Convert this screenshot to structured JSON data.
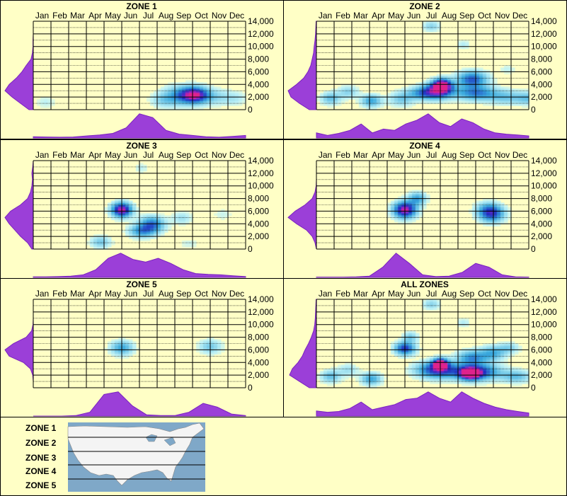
{
  "colors": {
    "background": "#FFFFC6",
    "density_fill": "#9B3FD8",
    "density_stroke": "#7A22C0",
    "heat_low": "#BFF2F6",
    "heat_mid": "#38A8DC",
    "heat_high": "#1E2EC0",
    "heat_peak": "#E0208C",
    "map_water": "#7FA8C8",
    "map_land": "#F4F4F4"
  },
  "legend": {
    "zones": [
      "ZONE 1",
      "ZONE 2",
      "ZONE 3",
      "ZONE 4",
      "ZONE 5"
    ]
  },
  "chart_data": [
    {
      "type": "heatmap",
      "title": "ZONE 1",
      "x_categories": [
        "Jan",
        "Feb",
        "Mar",
        "Apr",
        "May",
        "Jun",
        "Jul",
        "Aug",
        "Sep",
        "Oct",
        "Nov",
        "Dec"
      ],
      "y_ticks": [
        "14,000",
        "12,000",
        "10,000",
        "8,000",
        "6,000",
        "4,000",
        "2,000",
        "0"
      ],
      "ylim": [
        0,
        14000
      ],
      "hotspots": [
        {
          "month": 8.6,
          "elev": 2300,
          "intensity": 1.0,
          "sx": 0.55,
          "sy": 900
        },
        {
          "month": 7.6,
          "elev": 2200,
          "intensity": 0.35,
          "sx": 0.6,
          "sy": 1100
        },
        {
          "month": 6.8,
          "elev": 1500,
          "intensity": 0.2,
          "sx": 0.5,
          "sy": 800
        },
        {
          "month": 9.8,
          "elev": 2000,
          "intensity": 0.2,
          "sx": 0.6,
          "sy": 900
        },
        {
          "month": 10.9,
          "elev": 1800,
          "intensity": 0.15,
          "sx": 0.5,
          "sy": 800
        },
        {
          "month": 0.2,
          "elev": 1200,
          "intensity": 0.12,
          "sx": 0.4,
          "sy": 700
        }
      ],
      "month_density": [
        0.05,
        0.04,
        0.03,
        0.04,
        0.08,
        0.12,
        0.18,
        0.4,
        0.95,
        0.8,
        0.3,
        0.15,
        0.1,
        0.05,
        0.03,
        0.06,
        0.1
      ],
      "elev_density": [
        0.15,
        0.45,
        0.75,
        1.0,
        0.85,
        0.6,
        0.4,
        0.25,
        0.08,
        0.03,
        0.01,
        0.01,
        0.0,
        0.0,
        0.0
      ]
    },
    {
      "type": "heatmap",
      "title": "ZONE 2",
      "x_categories": [
        "Jan",
        "Feb",
        "Mar",
        "Apr",
        "May",
        "Jun",
        "Jul",
        "Aug",
        "Sep",
        "Oct",
        "Nov",
        "Dec"
      ],
      "y_ticks": [
        "14,000",
        "12,000",
        "10,000",
        "8,000",
        "6,000",
        "4,000",
        "2,000",
        "0"
      ],
      "ylim": [
        0,
        14000
      ],
      "hotspots": [
        {
          "month": 6.6,
          "elev": 3900,
          "intensity": 1.0,
          "sx": 0.35,
          "sy": 700
        },
        {
          "month": 6.4,
          "elev": 3000,
          "intensity": 0.75,
          "sx": 0.6,
          "sy": 900
        },
        {
          "month": 8.3,
          "elev": 4800,
          "intensity": 0.65,
          "sx": 0.6,
          "sy": 900
        },
        {
          "month": 8.5,
          "elev": 2600,
          "intensity": 0.55,
          "sx": 0.8,
          "sy": 800
        },
        {
          "month": 5.5,
          "elev": 2600,
          "intensity": 0.45,
          "sx": 0.6,
          "sy": 700
        },
        {
          "month": 2.6,
          "elev": 1400,
          "intensity": 0.45,
          "sx": 0.4,
          "sy": 700
        },
        {
          "month": 0.3,
          "elev": 1800,
          "intensity": 0.35,
          "sx": 0.4,
          "sy": 700
        },
        {
          "month": 1.3,
          "elev": 2800,
          "intensity": 0.25,
          "sx": 0.4,
          "sy": 700
        },
        {
          "month": 4.3,
          "elev": 1700,
          "intensity": 0.3,
          "sx": 0.5,
          "sy": 800
        },
        {
          "month": 10.2,
          "elev": 2000,
          "intensity": 0.3,
          "sx": 0.7,
          "sy": 800
        },
        {
          "month": 11.5,
          "elev": 1800,
          "intensity": 0.3,
          "sx": 0.5,
          "sy": 700
        },
        {
          "month": 6.0,
          "elev": 13200,
          "intensity": 0.25,
          "sx": 0.35,
          "sy": 600
        },
        {
          "month": 7.8,
          "elev": 10300,
          "intensity": 0.15,
          "sx": 0.3,
          "sy": 500
        },
        {
          "month": 10.3,
          "elev": 6400,
          "intensity": 0.12,
          "sx": 0.35,
          "sy": 500
        }
      ],
      "month_density": [
        0.2,
        0.1,
        0.18,
        0.3,
        0.55,
        0.2,
        0.35,
        0.3,
        0.55,
        0.7,
        0.95,
        0.6,
        0.45,
        0.75,
        0.6,
        0.35,
        0.2,
        0.15,
        0.12,
        0.08
      ],
      "elev_density": [
        0.25,
        0.6,
        0.9,
        1.0,
        0.7,
        0.45,
        0.3,
        0.2,
        0.15,
        0.1,
        0.08,
        0.05,
        0.03,
        0.02,
        0.01
      ]
    },
    {
      "type": "heatmap",
      "title": "ZONE 3",
      "x_categories": [
        "Jan",
        "Feb",
        "Mar",
        "Apr",
        "May",
        "Jun",
        "Jul",
        "Aug",
        "Sep",
        "Oct",
        "Nov",
        "Dec"
      ],
      "y_ticks": [
        "14,000",
        "12,000",
        "10,000",
        "8,000",
        "6,000",
        "4,000",
        "2,000",
        "0"
      ],
      "ylim": [
        0,
        14000
      ],
      "hotspots": [
        {
          "month": 4.5,
          "elev": 6200,
          "intensity": 1.0,
          "sx": 0.4,
          "sy": 800
        },
        {
          "month": 6.2,
          "elev": 3900,
          "intensity": 0.6,
          "sx": 0.5,
          "sy": 900
        },
        {
          "month": 5.6,
          "elev": 2800,
          "intensity": 0.45,
          "sx": 0.5,
          "sy": 700
        },
        {
          "month": 3.3,
          "elev": 1100,
          "intensity": 0.3,
          "sx": 0.4,
          "sy": 700
        },
        {
          "month": 7.9,
          "elev": 4900,
          "intensity": 0.2,
          "sx": 0.4,
          "sy": 700
        },
        {
          "month": 5.6,
          "elev": 12800,
          "intensity": 0.12,
          "sx": 0.3,
          "sy": 600
        },
        {
          "month": 10.2,
          "elev": 5500,
          "intensity": 0.1,
          "sx": 0.4,
          "sy": 700
        },
        {
          "month": 8.3,
          "elev": 900,
          "intensity": 0.1,
          "sx": 0.4,
          "sy": 600
        }
      ],
      "month_density": [
        0.02,
        0.02,
        0.03,
        0.05,
        0.1,
        0.3,
        0.75,
        0.95,
        0.7,
        0.6,
        0.75,
        0.55,
        0.3,
        0.15,
        0.12,
        0.1,
        0.06,
        0.03
      ],
      "elev_density": [
        0.05,
        0.2,
        0.45,
        0.65,
        0.85,
        1.0,
        0.8,
        0.45,
        0.2,
        0.1,
        0.05,
        0.03,
        0.05,
        0.02,
        0.0
      ]
    },
    {
      "type": "heatmap",
      "title": "ZONE 4",
      "x_categories": [
        "Jan",
        "Feb",
        "Mar",
        "Apr",
        "May",
        "Jun",
        "Jul",
        "Aug",
        "Sep",
        "Oct",
        "Nov",
        "Dec"
      ],
      "y_ticks": [
        "14,000",
        "12,000",
        "10,000",
        "8,000",
        "6,000",
        "4,000",
        "2,000",
        "0"
      ],
      "ylim": [
        0,
        14000
      ],
      "hotspots": [
        {
          "month": 4.5,
          "elev": 6200,
          "intensity": 1.0,
          "sx": 0.45,
          "sy": 900
        },
        {
          "month": 5.2,
          "elev": 8000,
          "intensity": 0.45,
          "sx": 0.35,
          "sy": 700
        },
        {
          "month": 9.4,
          "elev": 5500,
          "intensity": 0.65,
          "sx": 0.5,
          "sy": 900
        },
        {
          "month": 9.2,
          "elev": 6400,
          "intensity": 0.3,
          "sx": 0.5,
          "sy": 800
        }
      ],
      "month_density": [
        0.01,
        0.01,
        0.01,
        0.02,
        0.05,
        0.4,
        0.95,
        0.55,
        0.1,
        0.03,
        0.05,
        0.2,
        0.55,
        0.4,
        0.1,
        0.02,
        0.01
      ],
      "elev_density": [
        0.0,
        0.05,
        0.15,
        0.35,
        0.7,
        1.0,
        0.75,
        0.4,
        0.15,
        0.05,
        0.01,
        0.0,
        0.0,
        0.0,
        0.0
      ]
    },
    {
      "type": "heatmap",
      "title": "ZONE 5",
      "x_categories": [
        "Jan",
        "Feb",
        "Mar",
        "Apr",
        "May",
        "Jun",
        "Jul",
        "Aug",
        "Sep",
        "Oct",
        "Nov",
        "Dec"
      ],
      "y_ticks": [
        "14,000",
        "12,000",
        "10,000",
        "8,000",
        "6,000",
        "4,000",
        "2,000",
        "0"
      ],
      "ylim": [
        0,
        14000
      ],
      "hotspots": [
        {
          "month": 4.5,
          "elev": 6300,
          "intensity": 0.45,
          "sx": 0.45,
          "sy": 800
        },
        {
          "month": 9.5,
          "elev": 6500,
          "intensity": 0.3,
          "sx": 0.45,
          "sy": 800
        }
      ],
      "month_density": [
        0.0,
        0.0,
        0.0,
        0.02,
        0.15,
        0.85,
        0.95,
        0.4,
        0.05,
        0.02,
        0.02,
        0.15,
        0.5,
        0.35,
        0.08,
        0.02
      ],
      "elev_density": [
        0.0,
        0.0,
        0.02,
        0.1,
        0.35,
        0.85,
        1.0,
        0.7,
        0.25,
        0.06,
        0.01,
        0.0,
        0.0,
        0.0,
        0.0
      ]
    },
    {
      "type": "heatmap",
      "title": "ALL ZONES",
      "x_categories": [
        "Jan",
        "Feb",
        "Mar",
        "Apr",
        "May",
        "Jun",
        "Jul",
        "Aug",
        "Sep",
        "Oct",
        "Nov",
        "Dec"
      ],
      "y_ticks": [
        "14,000",
        "12,000",
        "10,000",
        "8,000",
        "6,000",
        "4,000",
        "2,000",
        "0"
      ],
      "ylim": [
        0,
        14000
      ],
      "hotspots": [
        {
          "month": 6.5,
          "elev": 3800,
          "intensity": 1.0,
          "sx": 0.3,
          "sy": 600
        },
        {
          "month": 8.2,
          "elev": 2200,
          "intensity": 1.0,
          "sx": 0.35,
          "sy": 600
        },
        {
          "month": 6.3,
          "elev": 2800,
          "intensity": 0.75,
          "sx": 0.8,
          "sy": 900
        },
        {
          "month": 8.5,
          "elev": 2500,
          "intensity": 0.8,
          "sx": 0.9,
          "sy": 900
        },
        {
          "month": 4.5,
          "elev": 6200,
          "intensity": 0.75,
          "sx": 0.4,
          "sy": 700
        },
        {
          "month": 8.3,
          "elev": 4800,
          "intensity": 0.5,
          "sx": 0.6,
          "sy": 800
        },
        {
          "month": 9.5,
          "elev": 5500,
          "intensity": 0.4,
          "sx": 0.5,
          "sy": 800
        },
        {
          "month": 2.6,
          "elev": 1400,
          "intensity": 0.45,
          "sx": 0.4,
          "sy": 700
        },
        {
          "month": 0.3,
          "elev": 1800,
          "intensity": 0.35,
          "sx": 0.4,
          "sy": 700
        },
        {
          "month": 4.8,
          "elev": 8000,
          "intensity": 0.3,
          "sx": 0.3,
          "sy": 600
        },
        {
          "month": 10.4,
          "elev": 6300,
          "intensity": 0.25,
          "sx": 0.4,
          "sy": 600
        },
        {
          "month": 10.8,
          "elev": 1800,
          "intensity": 0.35,
          "sx": 0.6,
          "sy": 700
        },
        {
          "month": 6.0,
          "elev": 13200,
          "intensity": 0.25,
          "sx": 0.35,
          "sy": 600
        },
        {
          "month": 7.8,
          "elev": 10300,
          "intensity": 0.15,
          "sx": 0.3,
          "sy": 500
        },
        {
          "month": 1.3,
          "elev": 2800,
          "intensity": 0.2,
          "sx": 0.4,
          "sy": 700
        }
      ],
      "month_density": [
        0.2,
        0.15,
        0.18,
        0.3,
        0.55,
        0.25,
        0.35,
        0.45,
        0.65,
        0.7,
        0.95,
        0.7,
        0.55,
        0.95,
        0.7,
        0.5,
        0.35,
        0.25,
        0.18,
        0.12
      ],
      "elev_density": [
        0.25,
        0.6,
        0.95,
        0.85,
        0.65,
        0.5,
        0.4,
        0.28,
        0.18,
        0.1,
        0.06,
        0.04,
        0.03,
        0.02,
        0.01
      ]
    }
  ]
}
